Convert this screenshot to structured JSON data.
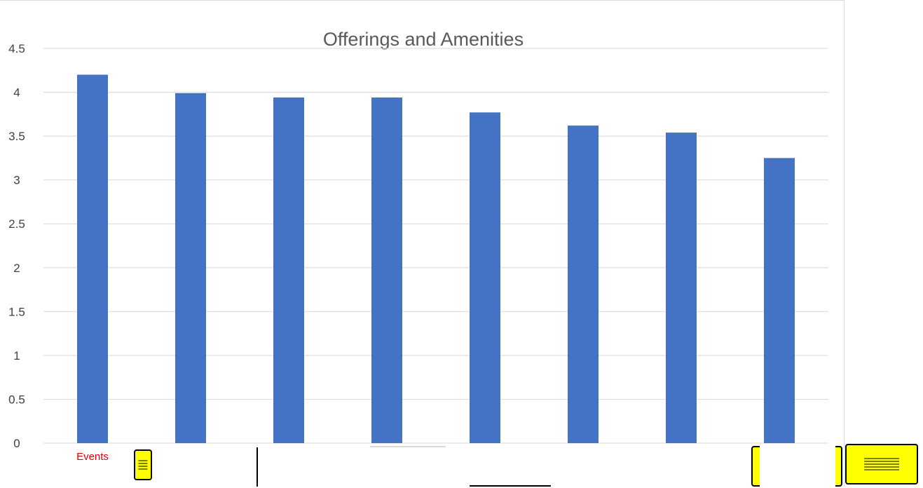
{
  "chart_data": {
    "type": "bar",
    "title": "Offerings and Amenities",
    "categories": [
      "Events",
      "",
      "",
      "",
      "",
      "",
      "",
      ""
    ],
    "values": [
      4.2,
      3.99,
      3.94,
      3.94,
      3.77,
      3.62,
      3.54,
      3.25
    ],
    "ylim": [
      0,
      4.5
    ],
    "yticks": [
      "0",
      "0.5",
      "1",
      "1.5",
      "2",
      "2.5",
      "3",
      "3.5",
      "4",
      "4.5"
    ],
    "xlabel": "",
    "ylabel": "",
    "grid": true,
    "bar_color": "#4472c4",
    "gridline_color": "#d9d9d9"
  },
  "overlay_colors": {
    "highlight": "#ffff00",
    "label_text": "#e00000"
  }
}
